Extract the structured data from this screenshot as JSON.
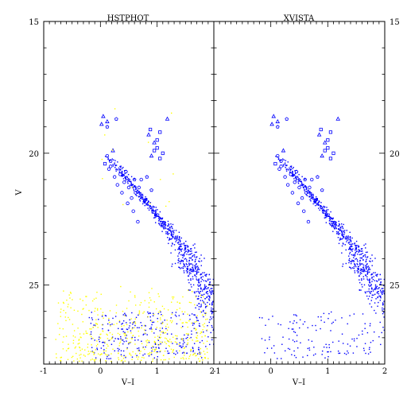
{
  "chart_data": [
    {
      "type": "scatter",
      "title": "HSTPHOT",
      "xlabel": "V–I",
      "ylabel": "V",
      "xlim": [
        -1,
        2
      ],
      "ylim": [
        28,
        15
      ],
      "y_inverted": true,
      "xticks": [
        "-1",
        "0",
        "1",
        "2"
      ],
      "yticks_left": [
        "15",
        "20",
        "25"
      ],
      "series": [
        {
          "color": "#0000ff",
          "marker": "dot",
          "cloud": "main-sequence-and-giant-branch"
        },
        {
          "color": "#0000ff",
          "marker": "circle",
          "points": [
            [
              0.12,
              20.1
            ],
            [
              0.18,
              20.5
            ],
            [
              0.25,
              20.9
            ],
            [
              0.3,
              21.2
            ],
            [
              0.42,
              21.1
            ],
            [
              0.38,
              21.5
            ],
            [
              0.5,
              21.3
            ],
            [
              0.55,
              21.7
            ],
            [
              0.62,
              21.5
            ],
            [
              0.68,
              21.3
            ],
            [
              0.72,
              21.0
            ],
            [
              0.15,
              20.6
            ],
            [
              0.35,
              20.8
            ],
            [
              0.48,
              21.9
            ],
            [
              0.58,
              22.2
            ],
            [
              0.66,
              22.6
            ]
          ]
        },
        {
          "color": "#0000ff",
          "marker": "triangle",
          "points": [
            [
              0.05,
              18.6
            ],
            [
              0.02,
              18.9
            ],
            [
              0.12,
              18.8
            ],
            [
              0.85,
              19.3
            ],
            [
              0.95,
              19.6
            ],
            [
              1.18,
              18.7
            ],
            [
              0.9,
              20.1
            ],
            [
              0.22,
              19.9
            ]
          ]
        },
        {
          "color": "#0000ff",
          "marker": "square",
          "points": [
            [
              0.88,
              19.1
            ],
            [
              1.05,
              19.2
            ],
            [
              1.0,
              19.5
            ],
            [
              0.95,
              19.9
            ],
            [
              1.05,
              20.2
            ],
            [
              1.1,
              20.0
            ],
            [
              0.08,
              20.4
            ],
            [
              1.0,
              19.8
            ]
          ]
        },
        {
          "color": "#0000ff",
          "marker": "pentagon",
          "points": [
            [
              0.28,
              18.7
            ],
            [
              0.12,
              19.0
            ],
            [
              0.18,
              20.3
            ],
            [
              0.45,
              20.7
            ],
            [
              0.82,
              20.9
            ],
            [
              0.9,
              21.4
            ],
            [
              0.78,
              21.8
            ],
            [
              0.6,
              21.0
            ]
          ]
        },
        {
          "color": "#ffff00",
          "marker": "dot",
          "cloud": "field-and-foreground"
        }
      ]
    },
    {
      "type": "scatter",
      "title": "XVISTA",
      "xlabel": "V–I",
      "ylabel": "",
      "xlim": [
        -1,
        2
      ],
      "ylim": [
        28,
        15
      ],
      "y_inverted": true,
      "xticks": [
        "-1",
        "0",
        "1",
        "2"
      ],
      "yticks_right": [
        "15",
        "20",
        "25"
      ],
      "series": [
        {
          "color": "#0000ff",
          "marker": "dot",
          "cloud": "main-sequence-and-giant-branch"
        },
        {
          "color": "#0000ff",
          "marker": "circle",
          "points": [
            [
              0.12,
              20.1
            ],
            [
              0.18,
              20.5
            ],
            [
              0.25,
              20.9
            ],
            [
              0.3,
              21.2
            ],
            [
              0.42,
              21.1
            ],
            [
              0.38,
              21.5
            ],
            [
              0.5,
              21.3
            ],
            [
              0.55,
              21.7
            ],
            [
              0.62,
              21.5
            ],
            [
              0.68,
              21.3
            ],
            [
              0.72,
              21.0
            ],
            [
              0.15,
              20.6
            ],
            [
              0.35,
              20.8
            ],
            [
              0.48,
              21.9
            ],
            [
              0.58,
              22.2
            ],
            [
              0.66,
              22.6
            ]
          ]
        },
        {
          "color": "#0000ff",
          "marker": "triangle",
          "points": [
            [
              0.05,
              18.6
            ],
            [
              0.02,
              18.9
            ],
            [
              0.12,
              18.8
            ],
            [
              0.85,
              19.3
            ],
            [
              0.95,
              19.6
            ],
            [
              1.18,
              18.7
            ],
            [
              0.9,
              20.1
            ],
            [
              0.22,
              19.9
            ]
          ]
        },
        {
          "color": "#0000ff",
          "marker": "square",
          "points": [
            [
              0.88,
              19.1
            ],
            [
              1.05,
              19.2
            ],
            [
              1.0,
              19.5
            ],
            [
              0.95,
              19.9
            ],
            [
              1.05,
              20.2
            ],
            [
              1.1,
              20.0
            ],
            [
              0.08,
              20.4
            ],
            [
              1.0,
              19.8
            ]
          ]
        },
        {
          "color": "#0000ff",
          "marker": "pentagon",
          "points": [
            [
              0.28,
              18.7
            ],
            [
              0.12,
              19.0
            ],
            [
              0.18,
              20.3
            ],
            [
              0.45,
              20.7
            ],
            [
              0.82,
              20.9
            ],
            [
              0.9,
              21.4
            ],
            [
              0.78,
              21.8
            ],
            [
              0.6,
              21.0
            ]
          ]
        }
      ]
    }
  ]
}
